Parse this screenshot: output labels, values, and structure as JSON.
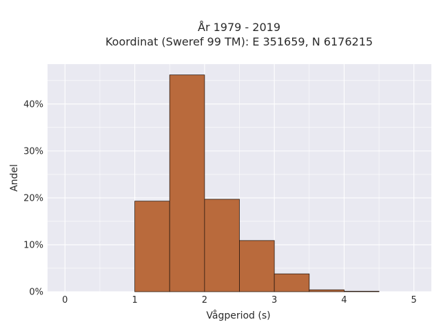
{
  "chart_data": {
    "type": "bar",
    "title_line1": "År 1979 - 2019",
    "title_line2": "Koordinat (Sweref 99 TM): E 351659, N 6176215",
    "xlabel": "Vågperiod (s)",
    "ylabel": "Andel",
    "xlim": [
      -0.25,
      5.25
    ],
    "ylim": [
      0,
      48.5
    ],
    "x_ticks": [
      0,
      1,
      2,
      3,
      4,
      5
    ],
    "x_tick_labels": [
      "0",
      "1",
      "2",
      "3",
      "4",
      "5"
    ],
    "y_ticks": [
      0,
      10,
      20,
      30,
      40
    ],
    "y_tick_labels": [
      "0%",
      "10%",
      "20%",
      "30%",
      "40%"
    ],
    "bin_width": 0.5,
    "bins": [
      {
        "start": 1.0,
        "value": 19.3
      },
      {
        "start": 1.5,
        "value": 46.2
      },
      {
        "start": 2.0,
        "value": 19.7
      },
      {
        "start": 2.5,
        "value": 10.9
      },
      {
        "start": 3.0,
        "value": 3.8
      },
      {
        "start": 3.5,
        "value": 0.4
      },
      {
        "start": 4.0,
        "value": 0.1
      }
    ],
    "grid": true,
    "bar_color": "#b96a3c",
    "bar_edge_color": "#2b1a10",
    "plot_bg": "#e9e9f1",
    "grid_color": "#ffffff"
  }
}
